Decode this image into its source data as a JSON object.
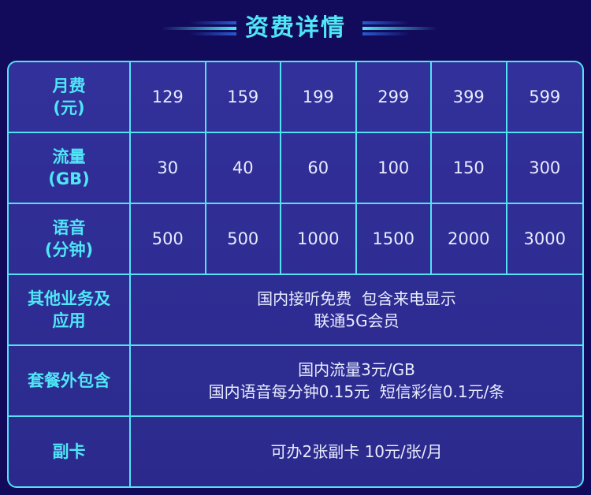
{
  "header": {
    "title": "资费详情"
  },
  "colors": {
    "background": "#120a5a",
    "cell": "#2f2e94",
    "border": "#54e2f2",
    "accent": "#4fe6f6"
  },
  "table": {
    "rows": [
      {
        "label": [
          "月费",
          "(元)"
        ],
        "values": [
          "129",
          "159",
          "199",
          "299",
          "399",
          "599"
        ]
      },
      {
        "label": [
          "流量",
          "(GB)"
        ],
        "values": [
          "30",
          "40",
          "60",
          "100",
          "150",
          "300"
        ]
      },
      {
        "label": [
          "语音",
          "(分钟)"
        ],
        "values": [
          "500",
          "500",
          "1000",
          "1500",
          "2000",
          "3000"
        ]
      },
      {
        "label": [
          "其他业务及",
          "应用"
        ],
        "lines": [
          "国内接听免费  包含来电显示",
          "联通5G会员"
        ]
      },
      {
        "label": [
          "套餐外包含"
        ],
        "lines": [
          "国内流量3元/GB",
          "国内语音每分钟0.15元  短信彩信0.1元/条"
        ]
      },
      {
        "label": [
          "副卡"
        ],
        "lines": [
          "可办2张副卡 10元/张/月"
        ]
      }
    ]
  }
}
